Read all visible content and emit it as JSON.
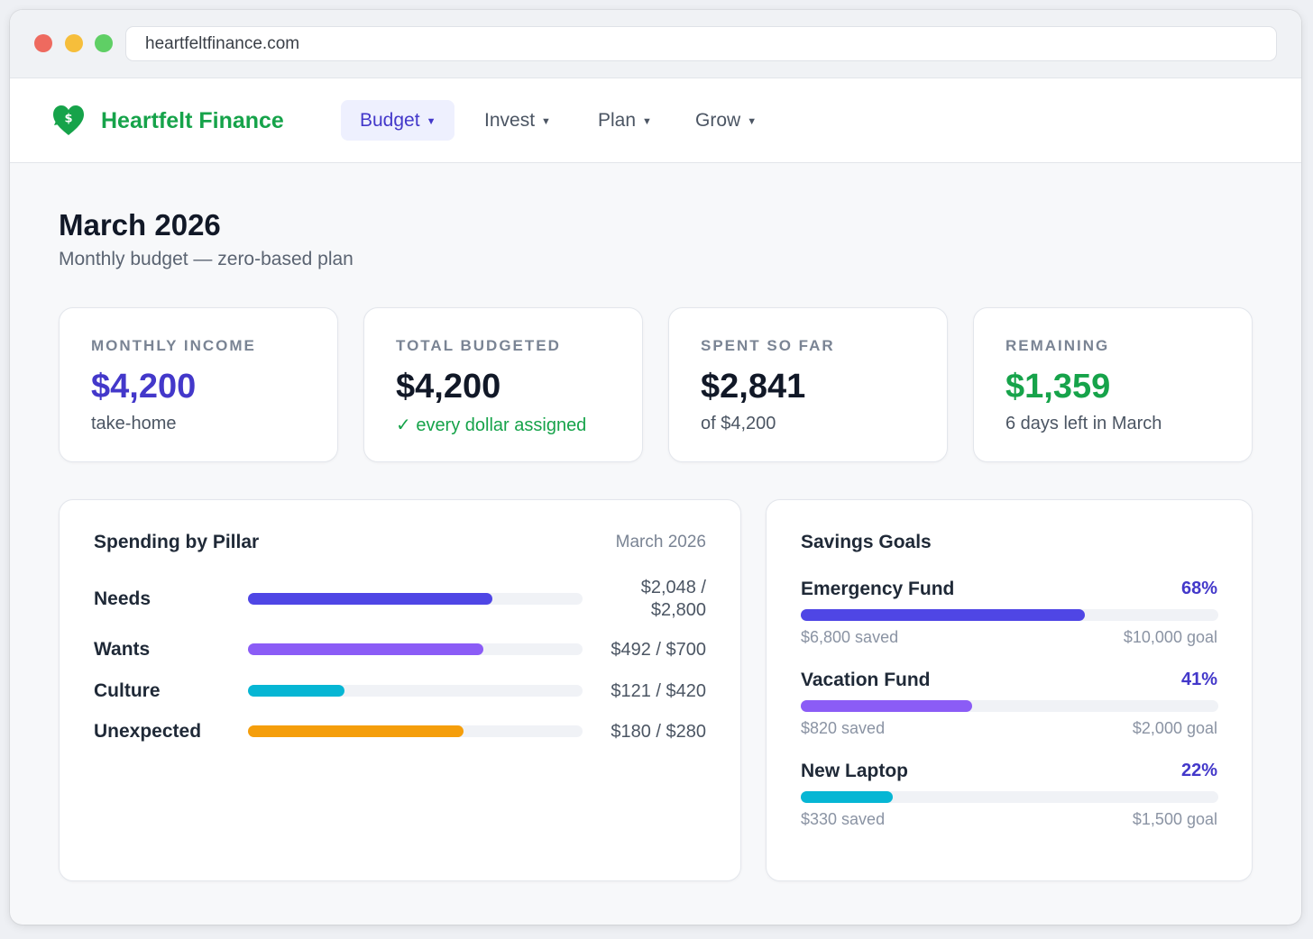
{
  "browser": {
    "url": "heartfeltfinance.com"
  },
  "brand": {
    "name": "Heartfelt Finance",
    "icon": "heart-dollar-icon",
    "color": "#16a34a"
  },
  "nav": [
    {
      "label": "Budget",
      "active": true
    },
    {
      "label": "Invest",
      "active": false
    },
    {
      "label": "Plan",
      "active": false
    },
    {
      "label": "Grow",
      "active": false
    }
  ],
  "page": {
    "title": "March 2026",
    "subtitle": "Monthly budget — zero-based plan"
  },
  "stats": [
    {
      "label": "MONTHLY INCOME",
      "value": "$4,200",
      "sub": "take-home",
      "color": "#4338ca"
    },
    {
      "label": "TOTAL BUDGETED",
      "value": "$4,200",
      "sub": "✓ every dollar assigned",
      "color": "#111827",
      "sub_color": "#16a34a"
    },
    {
      "label": "SPENT SO FAR",
      "value": "$2,841",
      "sub": "of $4,200",
      "color": "#111827"
    },
    {
      "label": "REMAINING",
      "value": "$1,359",
      "sub": "6 days left in March",
      "color": "#16a34a"
    }
  ],
  "spending": {
    "title": "Spending by Pillar",
    "date": "March 2026",
    "pillars": [
      {
        "name": "Needs",
        "spent": 2048,
        "budget": 2800,
        "amount_line1": "$2,048 /",
        "amount_line2": "$2,800",
        "color": "#4f46e5"
      },
      {
        "name": "Wants",
        "spent": 492,
        "budget": 700,
        "amount": "$492 / $700",
        "color": "#8b5cf6"
      },
      {
        "name": "Culture",
        "spent": 121,
        "budget": 420,
        "amount": "$121 / $420",
        "color": "#06b6d4"
      },
      {
        "name": "Unexpected",
        "spent": 180,
        "budget": 280,
        "amount": "$180 / $280",
        "color": "#f59e0b"
      }
    ]
  },
  "savings": {
    "title": "Savings Goals",
    "goals": [
      {
        "name": "Emergency Fund",
        "percent": 68,
        "percent_label": "68%",
        "saved": "$6,800 saved",
        "goal": "$10,000 goal",
        "color": "#4f46e5"
      },
      {
        "name": "Vacation Fund",
        "percent": 41,
        "percent_label": "41%",
        "saved": "$820 saved",
        "goal": "$2,000 goal",
        "color": "#8b5cf6"
      },
      {
        "name": "New Laptop",
        "percent": 22,
        "percent_label": "22%",
        "saved": "$330 saved",
        "goal": "$1,500 goal",
        "color": "#06b6d4"
      }
    ]
  }
}
